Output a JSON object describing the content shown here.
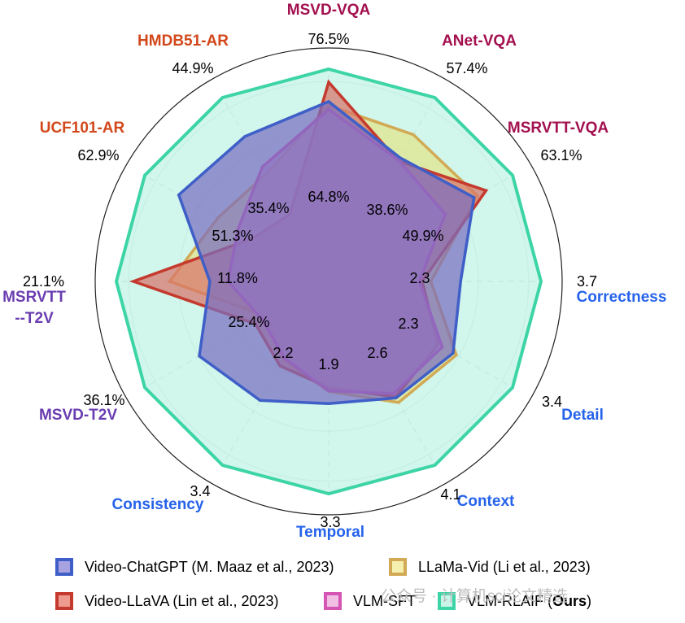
{
  "chart_data": {
    "type": "radar",
    "axes": [
      {
        "name": "MSVD-VQA",
        "color": "#a3104f",
        "scale_max": "76.5%",
        "max": 76.5
      },
      {
        "name": "ANet-VQA",
        "color": "#a3104f",
        "scale_max": "57.4%",
        "max": 57.4
      },
      {
        "name": "MSRVTT-VQA",
        "color": "#a3104f",
        "scale_max": "63.1%",
        "max": 63.1
      },
      {
        "name": "Correctness",
        "color": "#2563eb",
        "scale_max": "3.7",
        "max": 3.7
      },
      {
        "name": "Detail",
        "color": "#2563eb",
        "scale_max": "3.4",
        "max": 3.4
      },
      {
        "name": "Context",
        "color": "#2563eb",
        "scale_max": "4.1",
        "max": 4.1
      },
      {
        "name": "Temporal",
        "color": "#2563eb",
        "scale_max": "3.3",
        "max": 3.3
      },
      {
        "name": "Consistency",
        "color": "#2563eb",
        "scale_max": "3.4",
        "max": 3.4
      },
      {
        "name": "MSVD-T2V",
        "color": "#6a3db0",
        "scale_max": "36.1%",
        "max": 36.1
      },
      {
        "name": "MSRVTT -T2V",
        "color": "#6a3db0",
        "scale_max": "21.1%",
        "max": 21.1
      },
      {
        "name": "UCF101-AR",
        "color": "#d2481b",
        "scale_max": "62.9%",
        "max": 62.9
      },
      {
        "name": "HMDB51-AR",
        "color": "#d2481b",
        "scale_max": "44.9%",
        "max": 44.9
      }
    ],
    "inner_labels": [
      "64.8%",
      "38.6%",
      "49.9%",
      "2.3",
      "2.3",
      "2.6",
      "1.9",
      "2.2",
      "25.4%",
      "11.8%",
      "51.3%",
      "35.4%"
    ],
    "series": [
      {
        "name": "VLM-RLAIF (Ours)",
        "stroke": "#3dd4a6",
        "fill": "#c9f5e8",
        "values": [
          76.5,
          57.4,
          63.1,
          3.7,
          3.4,
          4.1,
          3.3,
          3.4,
          36.1,
          21.1,
          62.9,
          44.9
        ]
      },
      {
        "name": "LLaMa-Vid (Li et al., 2023)",
        "stroke": "#d2aa55",
        "fill": "#e2e58a",
        "values": [
          63.4,
          45.8,
          51.0,
          1.78,
          2.36,
          2.7,
          1.71,
          1.45,
          12.0,
          15.8,
          37.8,
          26.3
        ]
      },
      {
        "name": "Video-LLaVA (Lin et al., 2023)",
        "stroke": "#c53a2e",
        "fill": "#d8756b",
        "values": [
          71.8,
          37.6,
          54.0,
          1.63,
          2.02,
          2.58,
          1.65,
          1.56,
          14.4,
          19.4,
          25.7,
          16.4
        ]
      },
      {
        "name": "VLM-SFT",
        "stroke": "#d455b3",
        "fill": "#cc88c5",
        "values": [
          62.0,
          37.8,
          40.0,
          1.58,
          2.1,
          2.5,
          1.7,
          1.42,
          13.0,
          10.0,
          31.0,
          28.0
        ]
      },
      {
        "name": "Video-ChatGPT (M. Maaz et al., 2023)",
        "stroke": "#3f5fc8",
        "fill": "#7a6dc0",
        "values": [
          64.8,
          38.6,
          49.9,
          2.3,
          2.3,
          2.6,
          1.9,
          2.2,
          25.4,
          11.8,
          51.3,
          35.4
        ]
      }
    ],
    "grid_rings": 4,
    "legend_position": "bottom"
  },
  "legend": [
    {
      "label": "Video-ChatGPT (M. Maaz et al., 2023)",
      "border": "#3f5fc8",
      "fill": "#a9a2e0"
    },
    {
      "label": "LLaMa-Vid (Li et al., 2023)",
      "border": "#d2aa55",
      "fill": "#f6f0b0"
    },
    {
      "label": "Video-LLaVA (Lin et al., 2023)",
      "border": "#c53a2e",
      "fill": "#ef9a8e"
    },
    {
      "label": "VLM-SFT",
      "border": "#d455b3",
      "fill": "#f2bfe4"
    },
    {
      "label_prefix": "VLM-RLAIF (",
      "label_bold": "Ours",
      "label_suffix": ")",
      "border": "#3dd4a6",
      "fill": "#c9f5e8"
    }
  ],
  "watermark": "公众号 · 计算机sci论文精选"
}
